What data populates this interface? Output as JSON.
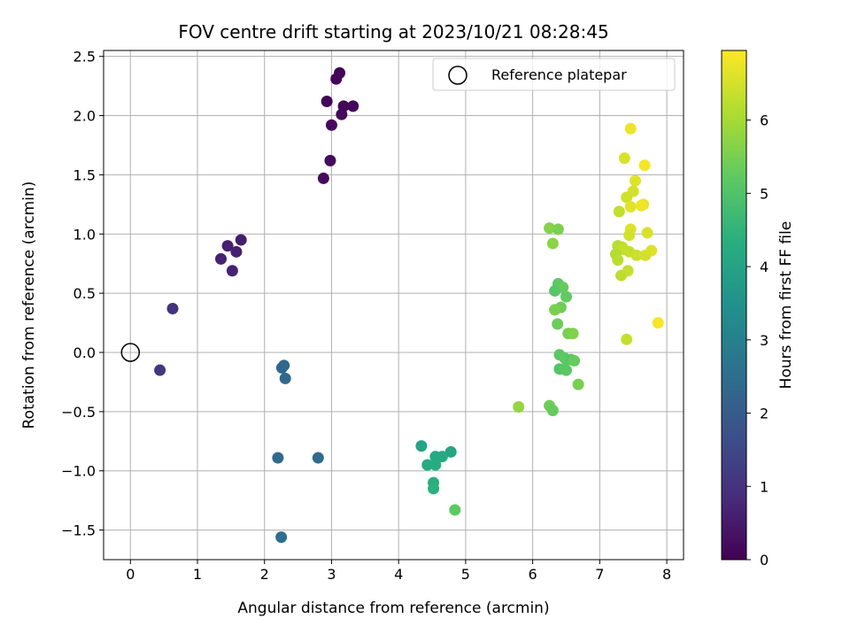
{
  "chart_data": {
    "type": "scatter",
    "title": "FOV centre drift starting at 2023/10/21 08:28:45",
    "xlabel": "Angular distance from reference (arcmin)",
    "ylabel": "Rotation from reference (arcmin)",
    "xlim": [
      -0.4,
      8.25
    ],
    "ylim": [
      -1.75,
      2.55
    ],
    "xticks": [
      "0",
      "1",
      "2",
      "3",
      "4",
      "5",
      "6",
      "7",
      "8"
    ],
    "yticks": [
      "−1.5",
      "−1.0",
      "−0.5",
      "0.0",
      "0.5",
      "1.0",
      "1.5",
      "2.0",
      "2.5"
    ],
    "grid": true,
    "legend": {
      "placement": "upper right",
      "entries": [
        "Reference platepar"
      ]
    },
    "colormap": "viridis",
    "colorbar": {
      "label": "Hours from first FF file",
      "range": [
        0,
        6.95
      ],
      "ticks": [
        "0",
        "1",
        "2",
        "3",
        "4",
        "5",
        "6"
      ]
    },
    "reference_point": {
      "x": 0.0,
      "y": 0.0,
      "label": "Reference platepar"
    },
    "series": [
      {
        "color_value_unit": "hours",
        "points": [
          {
            "x": 3.12,
            "y": 2.36,
            "c": 0.05
          },
          {
            "x": 3.07,
            "y": 2.31,
            "c": 0.08
          },
          {
            "x": 2.93,
            "y": 2.12,
            "c": 0.1
          },
          {
            "x": 3.18,
            "y": 2.08,
            "c": 0.12
          },
          {
            "x": 3.32,
            "y": 2.08,
            "c": 0.14
          },
          {
            "x": 3.15,
            "y": 2.01,
            "c": 0.15
          },
          {
            "x": 3.0,
            "y": 1.92,
            "c": 0.17
          },
          {
            "x": 2.98,
            "y": 1.62,
            "c": 0.19
          },
          {
            "x": 2.88,
            "y": 1.47,
            "c": 0.2
          },
          {
            "x": 1.65,
            "y": 0.95,
            "c": 0.55
          },
          {
            "x": 1.45,
            "y": 0.9,
            "c": 0.6
          },
          {
            "x": 1.58,
            "y": 0.85,
            "c": 0.62
          },
          {
            "x": 1.35,
            "y": 0.79,
            "c": 0.65
          },
          {
            "x": 1.52,
            "y": 0.69,
            "c": 0.67
          },
          {
            "x": 0.63,
            "y": 0.37,
            "c": 1.0
          },
          {
            "x": 0.44,
            "y": -0.15,
            "c": 1.1
          },
          {
            "x": 2.26,
            "y": -0.13,
            "c": 2.3
          },
          {
            "x": 2.29,
            "y": -0.11,
            "c": 2.32
          },
          {
            "x": 2.31,
            "y": -0.22,
            "c": 2.35
          },
          {
            "x": 2.2,
            "y": -0.89,
            "c": 2.4
          },
          {
            "x": 2.8,
            "y": -0.89,
            "c": 2.45
          },
          {
            "x": 2.25,
            "y": -1.56,
            "c": 2.5
          },
          {
            "x": 4.34,
            "y": -0.79,
            "c": 4.0
          },
          {
            "x": 4.78,
            "y": -0.84,
            "c": 4.1
          },
          {
            "x": 4.55,
            "y": -0.88,
            "c": 4.15
          },
          {
            "x": 4.65,
            "y": -0.88,
            "c": 4.2
          },
          {
            "x": 4.43,
            "y": -0.95,
            "c": 4.25
          },
          {
            "x": 4.55,
            "y": -0.95,
            "c": 4.3
          },
          {
            "x": 4.52,
            "y": -1.1,
            "c": 4.35
          },
          {
            "x": 4.52,
            "y": -1.15,
            "c": 4.4
          },
          {
            "x": 4.84,
            "y": -1.33,
            "c": 5.2
          },
          {
            "x": 5.79,
            "y": -0.46,
            "c": 5.8
          },
          {
            "x": 6.25,
            "y": 1.05,
            "c": 5.65
          },
          {
            "x": 6.38,
            "y": 1.04,
            "c": 5.55
          },
          {
            "x": 6.3,
            "y": 0.92,
            "c": 5.7
          },
          {
            "x": 6.38,
            "y": 0.58,
            "c": 5.2
          },
          {
            "x": 6.45,
            "y": 0.55,
            "c": 5.3
          },
          {
            "x": 6.33,
            "y": 0.52,
            "c": 5.1
          },
          {
            "x": 6.5,
            "y": 0.47,
            "c": 5.25
          },
          {
            "x": 6.42,
            "y": 0.38,
            "c": 5.4
          },
          {
            "x": 6.33,
            "y": 0.36,
            "c": 5.5
          },
          {
            "x": 6.37,
            "y": 0.24,
            "c": 5.35
          },
          {
            "x": 6.53,
            "y": 0.16,
            "c": 5.45
          },
          {
            "x": 6.6,
            "y": 0.16,
            "c": 5.6
          },
          {
            "x": 6.4,
            "y": -0.02,
            "c": 5.15
          },
          {
            "x": 6.48,
            "y": -0.05,
            "c": 5.2
          },
          {
            "x": 6.57,
            "y": -0.06,
            "c": 5.1
          },
          {
            "x": 6.62,
            "y": -0.07,
            "c": 5.3
          },
          {
            "x": 6.4,
            "y": -0.14,
            "c": 5.05
          },
          {
            "x": 6.48,
            "y": -0.14,
            "c": 5.1
          },
          {
            "x": 6.5,
            "y": -0.15,
            "c": 5.15
          },
          {
            "x": 6.68,
            "y": -0.27,
            "c": 5.5
          },
          {
            "x": 6.25,
            "y": -0.45,
            "c": 5.4
          },
          {
            "x": 6.3,
            "y": -0.49,
            "c": 5.3
          },
          {
            "x": 7.46,
            "y": 1.89,
            "c": 6.75
          },
          {
            "x": 7.37,
            "y": 1.64,
            "c": 6.55
          },
          {
            "x": 7.67,
            "y": 1.58,
            "c": 6.85
          },
          {
            "x": 7.53,
            "y": 1.45,
            "c": 6.6
          },
          {
            "x": 7.5,
            "y": 1.36,
            "c": 6.5
          },
          {
            "x": 7.4,
            "y": 1.31,
            "c": 6.45
          },
          {
            "x": 7.65,
            "y": 1.25,
            "c": 6.7
          },
          {
            "x": 7.62,
            "y": 1.24,
            "c": 6.8
          },
          {
            "x": 7.46,
            "y": 1.23,
            "c": 6.65
          },
          {
            "x": 7.29,
            "y": 1.19,
            "c": 6.3
          },
          {
            "x": 7.46,
            "y": 1.04,
            "c": 6.6
          },
          {
            "x": 7.71,
            "y": 1.01,
            "c": 6.55
          },
          {
            "x": 7.44,
            "y": 0.99,
            "c": 6.5
          },
          {
            "x": 7.27,
            "y": 0.9,
            "c": 6.2
          },
          {
            "x": 7.33,
            "y": 0.89,
            "c": 6.25
          },
          {
            "x": 7.36,
            "y": 0.87,
            "c": 6.3
          },
          {
            "x": 7.44,
            "y": 0.85,
            "c": 6.35
          },
          {
            "x": 7.77,
            "y": 0.86,
            "c": 6.6
          },
          {
            "x": 7.24,
            "y": 0.83,
            "c": 6.15
          },
          {
            "x": 7.55,
            "y": 0.82,
            "c": 6.4
          },
          {
            "x": 7.68,
            "y": 0.82,
            "c": 6.5
          },
          {
            "x": 7.27,
            "y": 0.78,
            "c": 6.2
          },
          {
            "x": 7.42,
            "y": 0.69,
            "c": 6.35
          },
          {
            "x": 7.32,
            "y": 0.65,
            "c": 6.25
          },
          {
            "x": 7.87,
            "y": 0.25,
            "c": 6.9
          },
          {
            "x": 7.4,
            "y": 0.11,
            "c": 6.35
          }
        ]
      }
    ]
  }
}
